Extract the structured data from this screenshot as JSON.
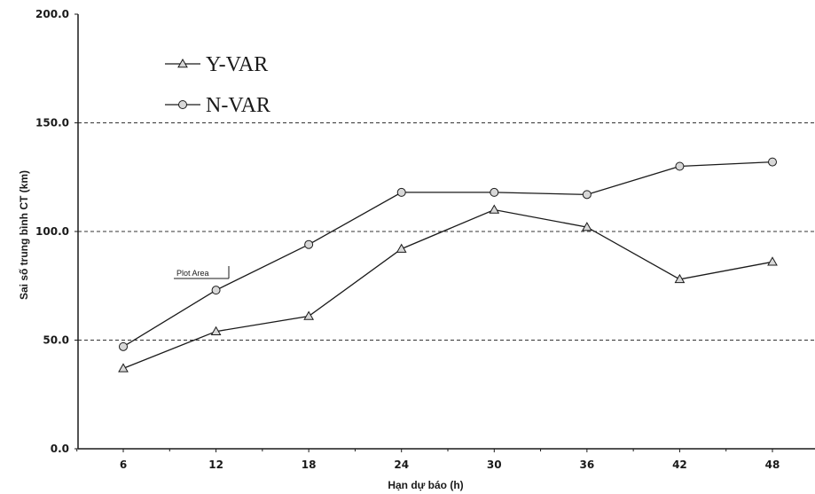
{
  "chart_data": {
    "type": "line",
    "title": "",
    "xlabel": "Hạn dự báo (h)",
    "ylabel": "Sai số trung bình CT (km)",
    "x": [
      6,
      12,
      18,
      24,
      30,
      36,
      42,
      48
    ],
    "x_tick_labels": [
      "6",
      "12",
      "18",
      "24",
      "30",
      "36",
      "42",
      "48"
    ],
    "y_tick_labels": [
      "0.0",
      "50.0",
      "100.0",
      "150.0",
      "200.0"
    ],
    "y_ticks": [
      0,
      50,
      100,
      150,
      200
    ],
    "ylim": [
      0,
      200
    ],
    "grid": "horizontal dashed at 50, 100, 150",
    "legend_position": "top-left",
    "annotation": "Plot Area",
    "series": [
      {
        "name": "Y-VAR",
        "marker": "triangle",
        "values": [
          37,
          54,
          61,
          92,
          110,
          102,
          78,
          86
        ]
      },
      {
        "name": "N-VAR",
        "marker": "circle",
        "values": [
          47,
          73,
          94,
          118,
          118,
          117,
          130,
          132
        ]
      }
    ],
    "colors": {
      "line": "#1a1a1a",
      "marker_fill": "#d8d8d8",
      "grid": "#333333"
    }
  }
}
